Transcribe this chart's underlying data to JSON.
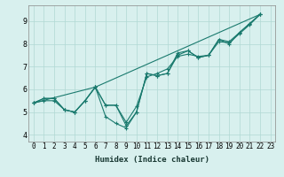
{
  "xlabel": "Humidex (Indice chaleur)",
  "background_color": "#d8f0ee",
  "grid_color": "#b0d8d4",
  "line_color": "#1a7a6e",
  "xlim": [
    -0.5,
    23.5
  ],
  "ylim": [
    3.7,
    9.7
  ],
  "yticks": [
    4,
    5,
    6,
    7,
    8,
    9
  ],
  "xticks": [
    0,
    1,
    2,
    3,
    4,
    5,
    6,
    7,
    8,
    9,
    10,
    11,
    12,
    13,
    14,
    15,
    16,
    17,
    18,
    19,
    20,
    21,
    22,
    23
  ],
  "series": [
    {
      "x": [
        0,
        1,
        2,
        3,
        4,
        5,
        6,
        7,
        8,
        9,
        10,
        11,
        12,
        13,
        14,
        15,
        16,
        17,
        18,
        19,
        20,
        21,
        22
      ],
      "y": [
        5.4,
        5.6,
        5.6,
        5.1,
        5.0,
        5.5,
        6.1,
        5.3,
        5.3,
        4.4,
        5.0,
        6.7,
        6.6,
        6.7,
        7.5,
        7.7,
        7.4,
        7.5,
        8.2,
        8.0,
        8.5,
        8.9,
        9.3
      ]
    },
    {
      "x": [
        0,
        1,
        2,
        3,
        4,
        5,
        6,
        7,
        8,
        9,
        10,
        11,
        12,
        13,
        14,
        15,
        16,
        17,
        18,
        19,
        20,
        21,
        22
      ],
      "y": [
        5.4,
        5.5,
        5.5,
        5.1,
        5.0,
        5.5,
        6.1,
        5.3,
        5.3,
        4.55,
        5.25,
        6.55,
        6.7,
        6.9,
        7.45,
        7.55,
        7.45,
        7.5,
        8.1,
        8.05,
        8.45,
        8.85,
        9.3
      ]
    },
    {
      "x": [
        0,
        6,
        22
      ],
      "y": [
        5.4,
        6.1,
        9.3
      ]
    },
    {
      "x": [
        0,
        1,
        2,
        3,
        4,
        5,
        6,
        7,
        8,
        9,
        10,
        11,
        12,
        13,
        14,
        15,
        16,
        17,
        18,
        19,
        20,
        21,
        22
      ],
      "y": [
        5.4,
        5.6,
        5.6,
        5.1,
        5.0,
        5.5,
        6.1,
        4.8,
        4.5,
        4.3,
        5.0,
        6.7,
        6.6,
        6.7,
        7.6,
        7.7,
        7.4,
        7.5,
        8.2,
        8.1,
        8.5,
        8.9,
        9.3
      ]
    }
  ],
  "marker": "+",
  "markersize": 3,
  "linewidth": 0.8,
  "xlabel_fontsize": 6.5,
  "tick_fontsize": 5.5
}
